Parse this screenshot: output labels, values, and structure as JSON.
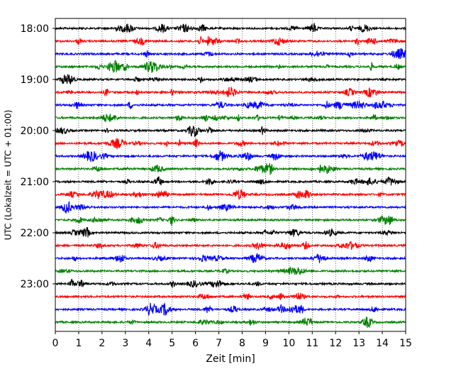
{
  "chart_data": {
    "type": "line",
    "title": "",
    "xlabel": "Zeit  [min]",
    "ylabel": "UTC (Lokalzeit = UTC + 01:00)",
    "xlim": [
      0,
      15
    ],
    "x_ticks": [
      "0",
      "1",
      "2",
      "3",
      "4",
      "5",
      "6",
      "7",
      "8",
      "9",
      "10",
      "11",
      "12",
      "13",
      "14",
      "15"
    ],
    "y_ticks": [
      "18:00",
      "19:00",
      "20:00",
      "21:00",
      "22:00",
      "23:00"
    ],
    "grid": "vertical dotted",
    "trace_interval_minutes": 15,
    "traces": [
      {
        "start": "18:00",
        "color": "#000000"
      },
      {
        "start": "18:15",
        "color": "#ff0000"
      },
      {
        "start": "18:30",
        "color": "#0000ff"
      },
      {
        "start": "18:45",
        "color": "#008000"
      },
      {
        "start": "19:00",
        "color": "#000000"
      },
      {
        "start": "19:15",
        "color": "#ff0000"
      },
      {
        "start": "19:30",
        "color": "#0000ff"
      },
      {
        "start": "19:45",
        "color": "#008000"
      },
      {
        "start": "20:00",
        "color": "#000000"
      },
      {
        "start": "20:15",
        "color": "#ff0000"
      },
      {
        "start": "20:30",
        "color": "#0000ff"
      },
      {
        "start": "20:45",
        "color": "#008000"
      },
      {
        "start": "21:00",
        "color": "#000000"
      },
      {
        "start": "21:15",
        "color": "#ff0000"
      },
      {
        "start": "21:30",
        "color": "#0000ff"
      },
      {
        "start": "21:45",
        "color": "#008000"
      },
      {
        "start": "22:00",
        "color": "#000000"
      },
      {
        "start": "22:15",
        "color": "#ff0000"
      },
      {
        "start": "22:30",
        "color": "#0000ff"
      },
      {
        "start": "22:45",
        "color": "#008000"
      },
      {
        "start": "23:00",
        "color": "#000000"
      },
      {
        "start": "23:15",
        "color": "#ff0000"
      },
      {
        "start": "23:30",
        "color": "#0000ff"
      },
      {
        "start": "23:45",
        "color": "#008000"
      }
    ]
  }
}
